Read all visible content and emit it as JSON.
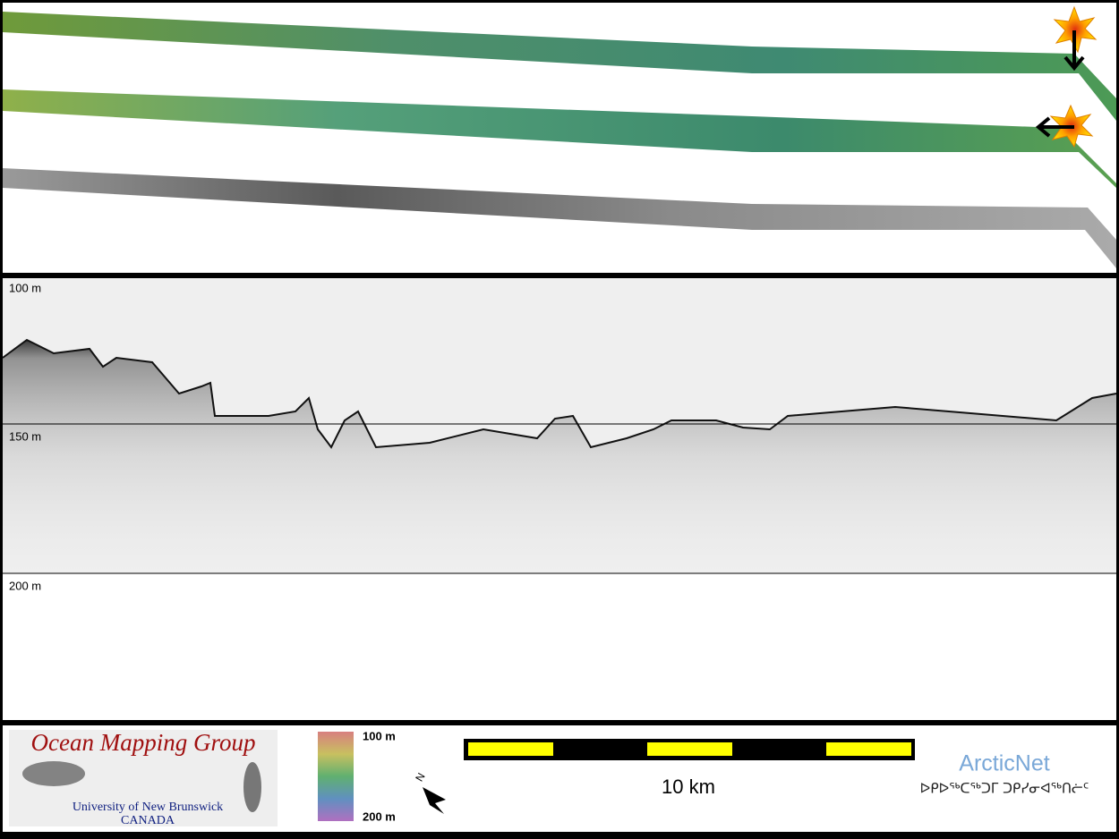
{
  "profile": {
    "depth_labels": [
      "100 m",
      "150 m",
      "200 m"
    ]
  },
  "logo": {
    "title": "Ocean Mapping Group",
    "line1": "University of New Brunswick",
    "line2": "CANADA"
  },
  "colorbar": {
    "top": "100 m",
    "bottom": "200 m"
  },
  "scale_bar": {
    "label": "10 km"
  },
  "arcticnet": {
    "name": "ArcticNet",
    "syllabics": "ᐅᑭᐅᖅᑕᖅᑐᒥ ᑐᑭᓯᓂᐊᖅᑎᓖᑦ"
  }
}
